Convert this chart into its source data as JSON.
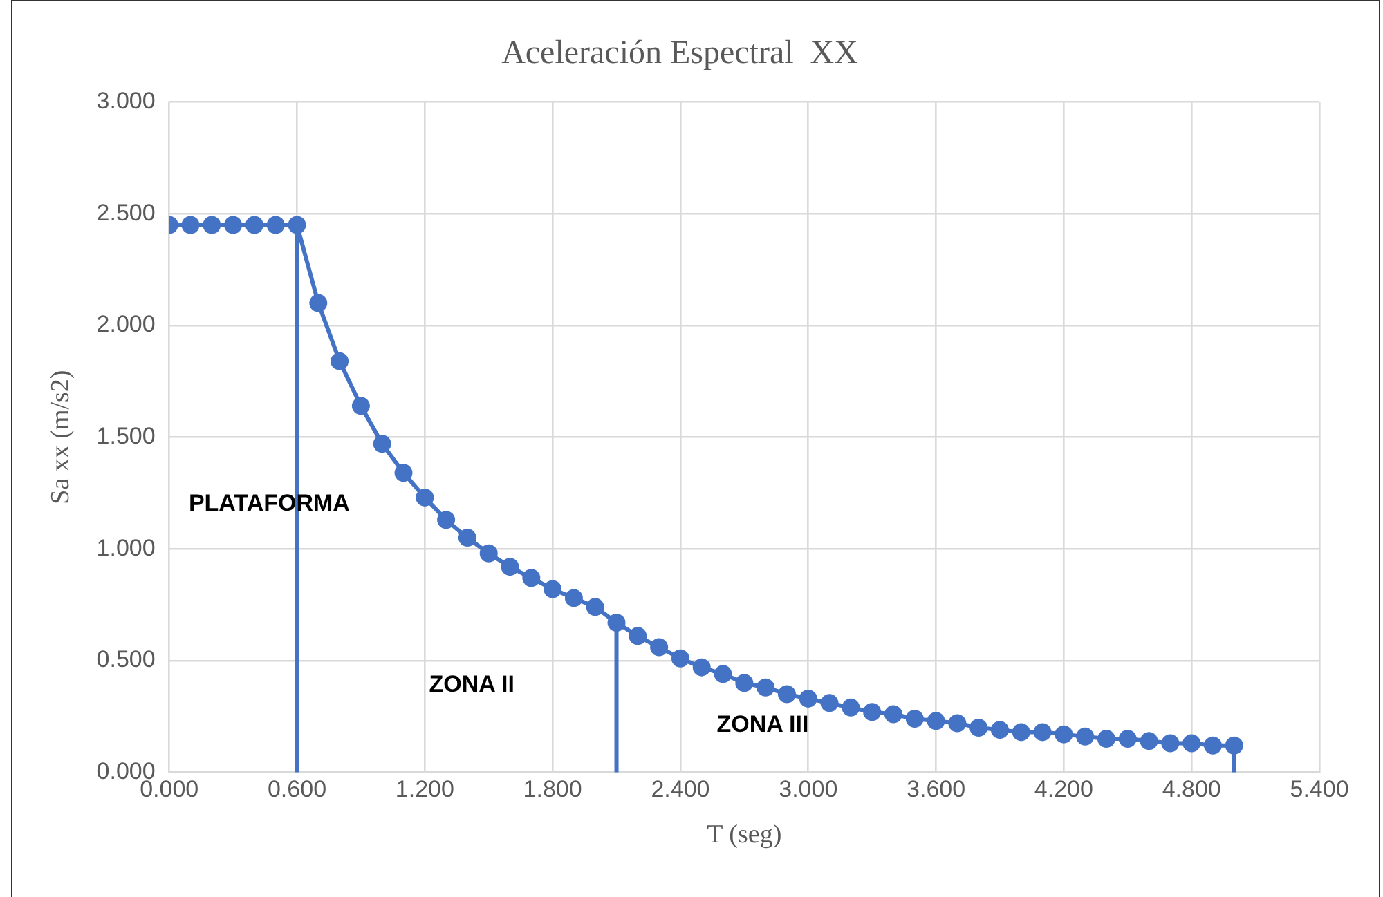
{
  "chart_data": {
    "type": "line",
    "title": "Aceleración Espectral  XX",
    "xlabel": "T (seg)",
    "ylabel": "Sa xx (m/s2)",
    "xlim": [
      0,
      5.4
    ],
    "ylim": [
      0,
      3
    ],
    "xticks": [
      {
        "value": 0,
        "label": "0.000"
      },
      {
        "value": 0.6,
        "label": "0.600"
      },
      {
        "value": 1.2,
        "label": "1.200"
      },
      {
        "value": 1.8,
        "label": "1.800"
      },
      {
        "value": 2.4,
        "label": "2.400"
      },
      {
        "value": 3.0,
        "label": "3.000"
      },
      {
        "value": 3.6,
        "label": "3.600"
      },
      {
        "value": 4.2,
        "label": "4.200"
      },
      {
        "value": 4.8,
        "label": "4.800"
      },
      {
        "value": 5.4,
        "label": "5.400"
      }
    ],
    "yticks": [
      {
        "value": 0,
        "label": "0.000"
      },
      {
        "value": 0.5,
        "label": "0.500"
      },
      {
        "value": 1,
        "label": "1.000"
      },
      {
        "value": 1.5,
        "label": "1.500"
      },
      {
        "value": 2,
        "label": "2.000"
      },
      {
        "value": 2.5,
        "label": "2.500"
      },
      {
        "value": 3,
        "label": "3.000"
      }
    ],
    "grid": true,
    "legend": false,
    "marker": "circle",
    "line_style": "solid",
    "series": [
      {
        "color": "#4472c4",
        "x": [
          0,
          0.1,
          0.2,
          0.3,
          0.4,
          0.5,
          0.6,
          0.7,
          0.8,
          0.9,
          1.0,
          1.1,
          1.2,
          1.3,
          1.4,
          1.5,
          1.6,
          1.7,
          1.8,
          1.9,
          2.0,
          2.1,
          2.2,
          2.3,
          2.4,
          2.5,
          2.6,
          2.7,
          2.8,
          2.9,
          3.0,
          3.1,
          3.2,
          3.3,
          3.4,
          3.5,
          3.6,
          3.7,
          3.8,
          3.9,
          4.0,
          4.1,
          4.2,
          4.3,
          4.4,
          4.5,
          4.6,
          4.7,
          4.8,
          4.9,
          5.0
        ],
        "values": [
          2.45,
          2.45,
          2.45,
          2.45,
          2.45,
          2.45,
          2.45,
          2.1,
          1.84,
          1.64,
          1.47,
          1.34,
          1.23,
          1.13,
          1.05,
          0.98,
          0.92,
          0.87,
          0.82,
          0.78,
          0.74,
          0.67,
          0.61,
          0.56,
          0.51,
          0.47,
          0.44,
          0.4,
          0.38,
          0.35,
          0.33,
          0.31,
          0.29,
          0.27,
          0.26,
          0.24,
          0.23,
          0.22,
          0.2,
          0.19,
          0.18,
          0.18,
          0.17,
          0.16,
          0.15,
          0.15,
          0.14,
          0.13,
          0.13,
          0.12,
          0.12
        ]
      },
      {
        "color": "#4472c4",
        "marker": "none",
        "x": [
          0.6,
          0.6
        ],
        "values": [
          0,
          2.45
        ]
      },
      {
        "color": "#4472c4",
        "marker": "none",
        "x": [
          2.1,
          2.1
        ],
        "values": [
          0,
          0.67
        ]
      },
      {
        "color": "#4472c4",
        "marker": "none",
        "x": [
          5.0,
          5.0
        ],
        "values": [
          0,
          0.12
        ]
      }
    ],
    "annotations": [
      "PLATAFORMA",
      "ZONA II",
      "ZONA III"
    ]
  }
}
